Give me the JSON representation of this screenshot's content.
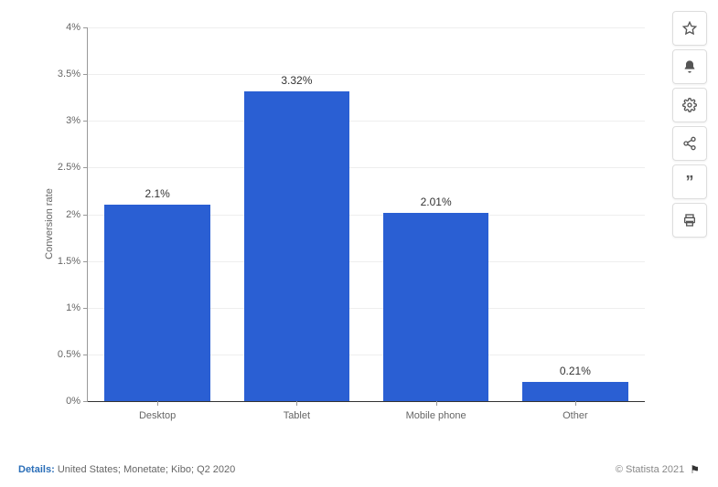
{
  "chart": {
    "type": "bar",
    "ylabel": "Conversion rate",
    "ylabel_fontsize": 11,
    "categories": [
      "Desktop",
      "Tablet",
      "Mobile phone",
      "Other"
    ],
    "values": [
      2.1,
      3.32,
      2.01,
      0.21
    ],
    "value_labels": [
      "2.1%",
      "3.32%",
      "2.01%",
      "0.21%"
    ],
    "bar_color": "#2a5fd3",
    "ylim": [
      0,
      4
    ],
    "ytick_step": 0.5,
    "yticks": [
      "0%",
      "0.5%",
      "1%",
      "1.5%",
      "2%",
      "2.5%",
      "3%",
      "3.5%",
      "4%"
    ],
    "background_color": "#ffffff",
    "grid_color": "#eeeeee",
    "axis_color": "#999999",
    "tick_fontsize": 11,
    "label_fontsize": 12,
    "bar_width": 0.76
  },
  "toolbar": {
    "icons": [
      "star-icon",
      "bell-icon",
      "gear-icon",
      "share-icon",
      "quote-icon",
      "print-icon"
    ]
  },
  "footer": {
    "details_label": "Details:",
    "details_text": "United States; Monetate; Kibo; Q2 2020",
    "copyright": "© Statista 2021"
  }
}
